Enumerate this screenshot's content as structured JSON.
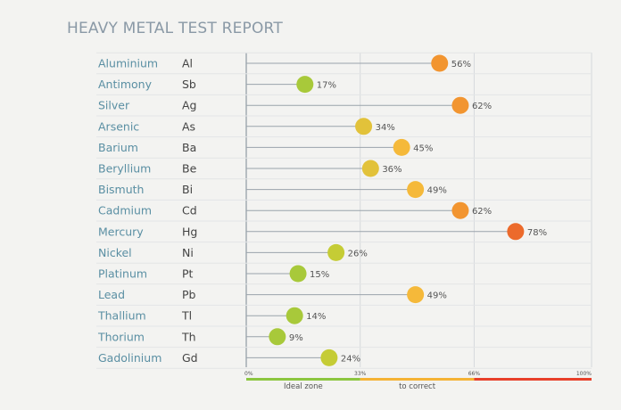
{
  "chart_data": {
    "type": "lollipop",
    "title": "HEAVY METAL TEST REPORT",
    "categories": [
      "Aluminium",
      "Antimony",
      "Silver",
      "Arsenic",
      "Barium",
      "Beryllium",
      "Bismuth",
      "Cadmium",
      "Mercury",
      "Nickel",
      "Platinum",
      "Lead",
      "Thallium",
      "Thorium",
      "Gadolinium"
    ],
    "symbols": [
      "Al",
      "Sb",
      "Ag",
      "As",
      "Ba",
      "Be",
      "Bi",
      "Cd",
      "Hg",
      "Ni",
      "Pt",
      "Pb",
      "Tl",
      "Th",
      "Gd"
    ],
    "values": [
      56,
      17,
      62,
      34,
      45,
      36,
      49,
      62,
      78,
      26,
      15,
      49,
      14,
      9,
      24
    ],
    "value_labels": [
      "56%",
      "17%",
      "62%",
      "34%",
      "45%",
      "36%",
      "49%",
      "62%",
      "78%",
      "26%",
      "15%",
      "49%",
      "14%",
      "9%",
      "24%"
    ],
    "xlim": [
      0,
      100
    ],
    "ticks": [
      0,
      33,
      66,
      100
    ],
    "tick_labels": [
      "0%",
      "33%",
      "66%",
      "100%"
    ],
    "zones": [
      {
        "label": "Ideal zone",
        "from": 0,
        "to": 33,
        "color": "#8cc63f"
      },
      {
        "label": "to correct",
        "from": 33,
        "to": 66,
        "color": "#f5b335"
      },
      {
        "label": "",
        "from": 66,
        "to": 100,
        "color": "#e8402a"
      }
    ],
    "color_scale": [
      "#a8c93a",
      "#c9cc33",
      "#f0bc3a",
      "#f29a30",
      "#ec6a2b"
    ],
    "grid": true
  }
}
